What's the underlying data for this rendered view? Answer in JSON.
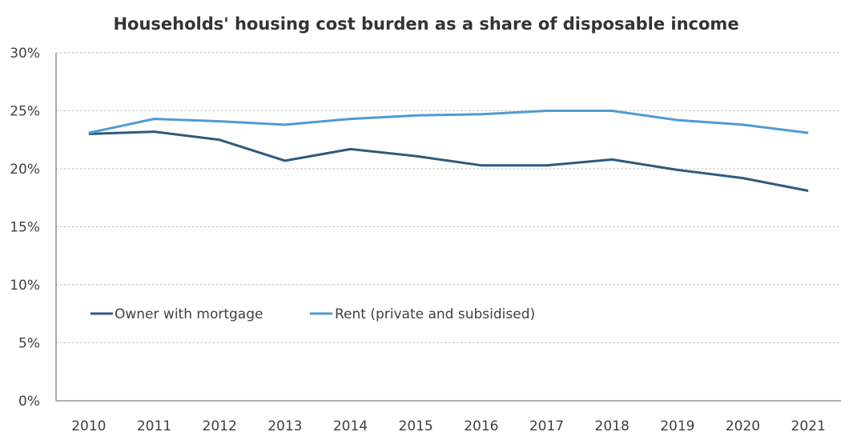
{
  "chart_data": {
    "type": "line",
    "title": "Households' housing cost burden as a share of disposable income",
    "xlabel": "",
    "ylabel": "",
    "x": [
      "2010",
      "2011",
      "2012",
      "2013",
      "2014",
      "2015",
      "2016",
      "2017",
      "2018",
      "2019",
      "2020",
      "2021"
    ],
    "ylim": [
      0,
      30
    ],
    "yticks": [
      0,
      5,
      10,
      15,
      20,
      25,
      30
    ],
    "ytick_labels": [
      "0%",
      "5%",
      "10%",
      "15%",
      "20%",
      "25%",
      "30%"
    ],
    "grid": true,
    "legend_position": "lower-left inside",
    "series": [
      {
        "name": "Owner with mortgage",
        "color": "#2e5a7e",
        "values": [
          23.0,
          23.2,
          22.5,
          20.7,
          21.7,
          21.1,
          20.3,
          20.3,
          20.8,
          19.9,
          19.2,
          18.1
        ]
      },
      {
        "name": "Rent (private and subsidised)",
        "color": "#4f9bd4",
        "values": [
          23.1,
          24.3,
          24.1,
          23.8,
          24.3,
          24.6,
          24.7,
          25.0,
          25.0,
          24.2,
          23.8,
          23.1
        ]
      }
    ]
  }
}
